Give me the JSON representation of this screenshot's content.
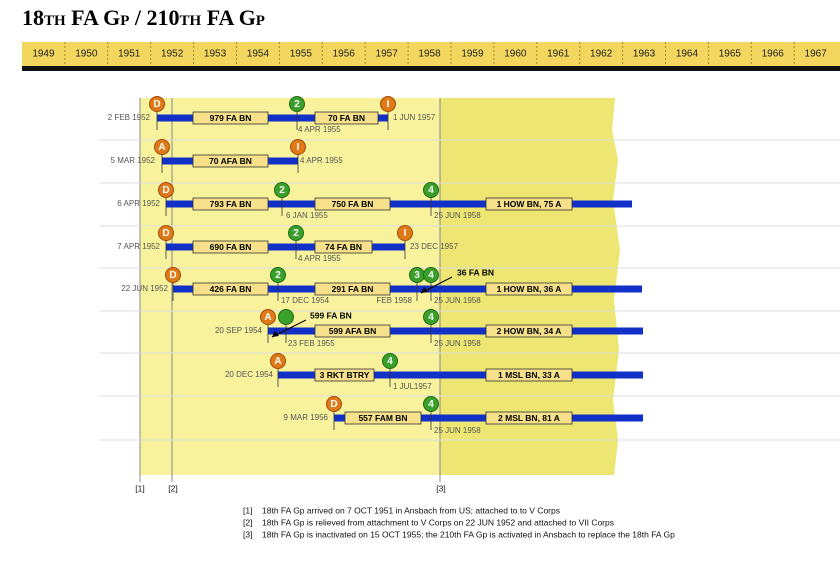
{
  "title": "18th FA Gp / 210th FA Gp",
  "years": [
    "1949",
    "1950",
    "1951",
    "1952",
    "1953",
    "1954",
    "1955",
    "1956",
    "1957",
    "1958",
    "1959",
    "1960",
    "1961",
    "1962",
    "1963",
    "1964",
    "1965",
    "1966",
    "1967"
  ],
  "rows": [
    {
      "start_date": "2 FEB 1952",
      "units": [
        "979 FA BN",
        "70 FA BN"
      ],
      "markers": [
        "D",
        "2",
        "I"
      ],
      "dates": [
        "4 APR 1955",
        "1 JUN 1957"
      ]
    },
    {
      "start_date": "5 MAR 1952",
      "units": [
        "70 AFA BN"
      ],
      "markers": [
        "A",
        "I"
      ],
      "dates": [
        "4 APR 1955"
      ]
    },
    {
      "start_date": "6 APR 1952",
      "units": [
        "793 FA BN",
        "750 FA BN",
        "1 HOW BN, 75 A"
      ],
      "markers": [
        "D",
        "2",
        "4"
      ],
      "dates": [
        "6 JAN 1955",
        "25 JUN 1958"
      ]
    },
    {
      "start_date": "7 APR 1952",
      "units": [
        "690 FA BN",
        "74 FA BN"
      ],
      "markers": [
        "D",
        "2",
        "I"
      ],
      "dates": [
        "4 APR 1955",
        "23 DEC 1957"
      ]
    },
    {
      "start_date": "22 JUN 1952",
      "units": [
        "426 FA BN",
        "291 FA BN",
        "1 HOW BN, 36 A"
      ],
      "markers": [
        "D",
        "2",
        "3",
        "4"
      ],
      "dates": [
        "17 DEC 1954",
        "FEB 1958",
        "25 JUN 1958"
      ]
    },
    {
      "start_date": "20 SEP 1954",
      "units": [
        "599 AFA BN",
        "2 HOW BN, 34 A"
      ],
      "markers": [
        "A",
        "4"
      ],
      "dates": [
        "23 FEB 1955",
        "25 JUN 1958"
      ]
    },
    {
      "start_date": "20 DEC 1954",
      "units": [
        "3 RKT BTRY",
        "1 MSL BN, 33 A"
      ],
      "markers": [
        "A",
        "4"
      ],
      "dates": [
        "1 JUL1957"
      ]
    },
    {
      "start_date": "9 MAR 1956",
      "units": [
        "557 FAM BN",
        "2 MSL BN, 81 A"
      ],
      "markers": [
        "D",
        "4"
      ],
      "dates": [
        "25 JUN 1958"
      ]
    }
  ],
  "annotations": [
    "36 FA BN",
    "599 FA BN"
  ],
  "references": [
    "[1]",
    "[2]",
    "[3]"
  ],
  "notes": [
    {
      "ref": "[1]",
      "text": "18th FA Gp arrived on 7 OCT 1951 in Ansbach from US; attached to to V Corps"
    },
    {
      "ref": "[2]",
      "text": "18th FA Gp is relieved from attachment to V Corps on 22 JUN 1952 and attached to VII Corps"
    },
    {
      "ref": "[3]",
      "text": "18th FA Gp is inactivated on 15 OCT 1955; the 210th FA Gp is activated in Ansbach to replace the 18th FA Gp"
    }
  ]
}
